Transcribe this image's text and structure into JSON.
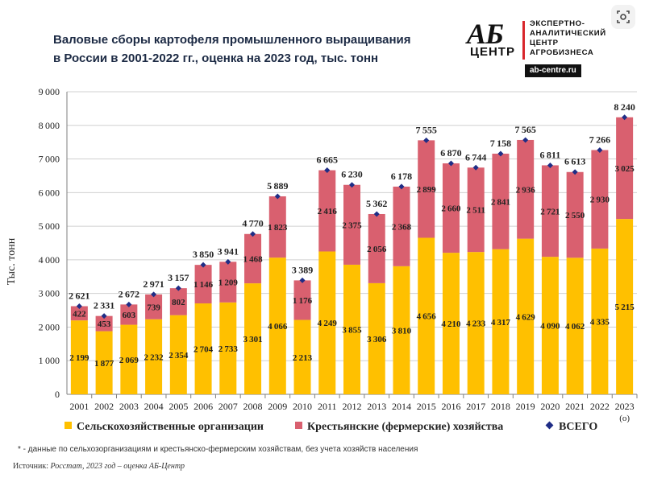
{
  "header": {
    "title_line1": "Валовые сборы картофеля промышленного выращивания",
    "title_line2": "в России в 2001-2022 гг., оценка на 2023 год, тыс. тонн"
  },
  "logo": {
    "mark": "АБ",
    "centr": "ЦЕНТР",
    "line1": "ЭКСПЕРТНО-",
    "line2": "АНАЛИТИЧЕСКИЙ",
    "line3": "ЦЕНТР",
    "line4": "АГРОБИЗНЕСА",
    "url": "ab-centre.ru"
  },
  "chart_data": {
    "type": "bar",
    "stacked": true,
    "categories": [
      "2001",
      "2002",
      "2003",
      "2004",
      "2005",
      "2006",
      "2007",
      "2008",
      "2009",
      "2010",
      "2011",
      "2012",
      "2013",
      "2014",
      "2015",
      "2016",
      "2017",
      "2018",
      "2019",
      "2020",
      "2021",
      "2022",
      "2023"
    ],
    "category_suffix_last": "(о)",
    "series": [
      {
        "name": "Сельскохозяйственные организации",
        "color": "#ffc000",
        "values": [
          2199,
          1877,
          2069,
          2232,
          2354,
          2704,
          2733,
          3301,
          4066,
          2213,
          4249,
          3855,
          3306,
          3810,
          4656,
          4210,
          4233,
          4317,
          4629,
          4090,
          4062,
          4335,
          5215
        ]
      },
      {
        "name": "Крестьянские (фермерские) хозяйства",
        "color": "#d9606f",
        "values": [
          422,
          453,
          603,
          739,
          802,
          1146,
          1209,
          1468,
          1823,
          1176,
          2416,
          2375,
          2056,
          2368,
          2899,
          2660,
          2511,
          2841,
          2936,
          2721,
          2550,
          2930,
          3025
        ]
      }
    ],
    "total": {
      "name": "ВСЕГО",
      "color": "#1f2d86",
      "values": [
        2621,
        2331,
        2672,
        2971,
        3157,
        3850,
        3941,
        4770,
        5889,
        3389,
        6665,
        6230,
        5362,
        6178,
        7555,
        6870,
        6744,
        7158,
        7565,
        6811,
        6613,
        7266,
        8240
      ]
    },
    "ylabel": "Тыс. тонн",
    "ylim": [
      0,
      9000
    ],
    "yticks": [
      0,
      1000,
      2000,
      3000,
      4000,
      5000,
      6000,
      7000,
      8000,
      9000
    ],
    "grid": true,
    "legend_position": "bottom"
  },
  "footnote": "* - данные по сельхозорганизациям и крестьянско-фермерским хозяйствам,  без учета хозяйств  населения",
  "source": {
    "label": "Источник:",
    "text": "Росстат, 2023 год – оценка АБ-Центр"
  }
}
